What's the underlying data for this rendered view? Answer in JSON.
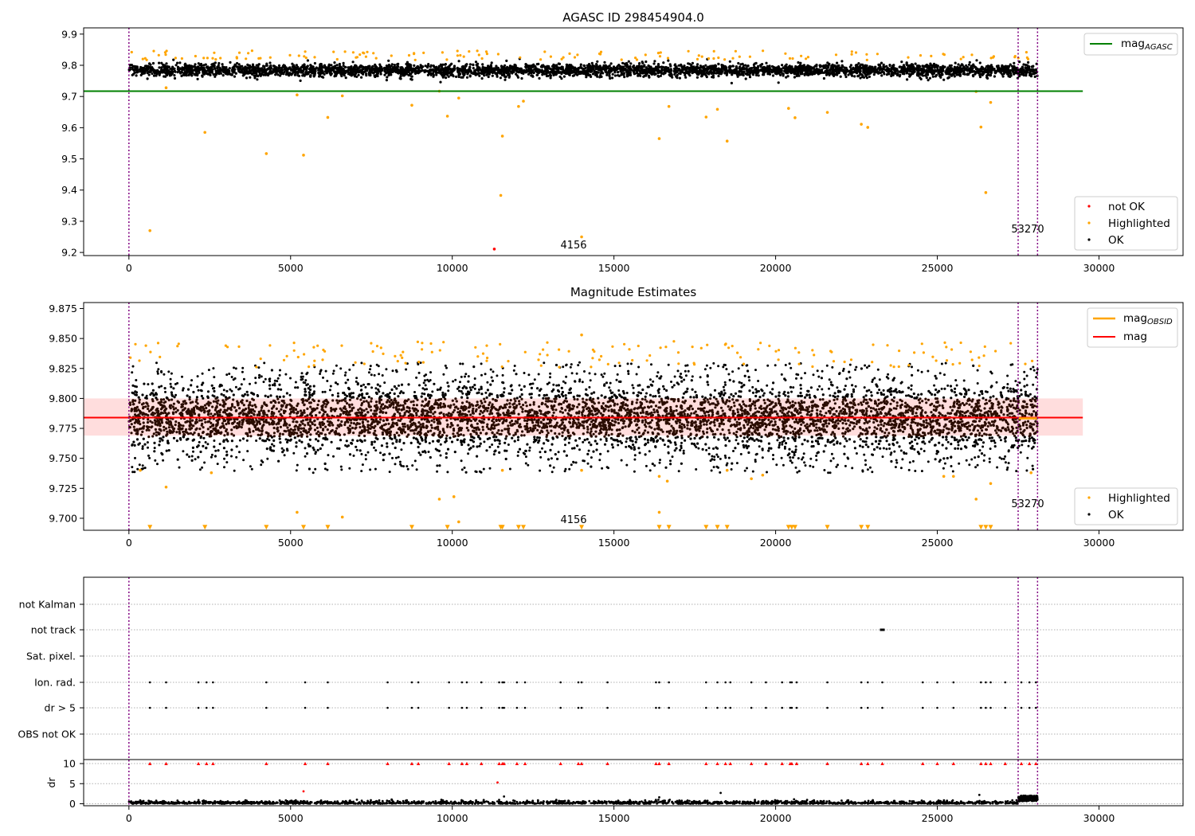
{
  "chart_data": [
    {
      "type": "scatter",
      "title": "AGASC ID 298454904.0",
      "xlim": [
        -1400,
        32600
      ],
      "ylim": [
        9.19,
        9.92
      ],
      "xticks": [
        "0",
        "5000",
        "10000",
        "15000",
        "20000",
        "25000",
        "30000"
      ],
      "yticks": [
        "9.2",
        "9.3",
        "9.4",
        "9.5",
        "9.6",
        "9.7",
        "9.8",
        "9.9"
      ],
      "hline": {
        "name": "mag_AGASC",
        "value": 9.717,
        "color": "#008000",
        "x_range": [
          -1400,
          29500
        ]
      },
      "vlines": [
        0,
        27500,
        28100
      ],
      "band": {
        "center": 9.784,
        "spread": 0.014,
        "x_range": [
          0,
          28100
        ]
      },
      "series": [
        {
          "name": "not OK",
          "color": "#ff0000",
          "points": [
            [
              11300,
              9.211
            ]
          ]
        },
        {
          "name": "Highlighted",
          "color": "#ffa500",
          "points": [
            [
              650,
              9.27
            ],
            [
              2350,
              9.585
            ],
            [
              4250,
              9.517
            ],
            [
              5400,
              9.512
            ],
            [
              6150,
              9.633
            ],
            [
              8750,
              9.672
            ],
            [
              9850,
              9.637
            ],
            [
              11550,
              9.573
            ],
            [
              11500,
              9.383
            ],
            [
              12050,
              9.668
            ],
            [
              12200,
              9.685
            ],
            [
              14000,
              9.25
            ],
            [
              16400,
              9.565
            ],
            [
              16700,
              9.668
            ],
            [
              17850,
              9.634
            ],
            [
              18200,
              9.659
            ],
            [
              18500,
              9.557
            ],
            [
              20400,
              9.662
            ],
            [
              20600,
              9.632
            ],
            [
              21600,
              9.649
            ],
            [
              22650,
              9.611
            ],
            [
              22850,
              9.601
            ],
            [
              26350,
              9.602
            ],
            [
              26500,
              9.392
            ],
            [
              26650,
              9.681
            ],
            [
              5200,
              9.705
            ],
            [
              6600,
              9.702
            ],
            [
              10200,
              9.695
            ],
            [
              9600,
              9.717
            ],
            [
              1150,
              9.728
            ],
            [
              26200,
              9.716
            ]
          ]
        }
      ],
      "annotations": [
        {
          "text": "4156",
          "x": 13900,
          "y": 9.215
        },
        {
          "text": "53270",
          "x": 27800,
          "y": 9.265
        }
      ],
      "legends": [
        [
          "mag_AGASC"
        ],
        [
          "not OK",
          "Highlighted",
          "OK"
        ]
      ]
    },
    {
      "type": "scatter",
      "title": "Magnitude Estimates",
      "xlim": [
        -1400,
        32600
      ],
      "ylim": [
        9.69,
        9.88
      ],
      "xticks": [
        "0",
        "5000",
        "10000",
        "15000",
        "20000",
        "25000",
        "30000"
      ],
      "yticks": [
        "9.700",
        "9.725",
        "9.750",
        "9.775",
        "9.800",
        "9.825",
        "9.850",
        "9.875"
      ],
      "hlines": [
        {
          "name": "mag_OBSID",
          "value": 9.784,
          "color": "#ffa500",
          "x_range": [
            27500,
            28100
          ]
        },
        {
          "name": "mag",
          "value": 9.784,
          "color": "#ff0000",
          "x_range": [
            -1400,
            29500
          ]
        }
      ],
      "error_band": {
        "low": 9.769,
        "high": 9.8,
        "color": "#ffdddd",
        "x_range": [
          -1400,
          29500
        ]
      },
      "vlines": [
        0,
        27500,
        28100
      ],
      "clipped_x": [
        650,
        2350,
        4250,
        5400,
        6150,
        8750,
        9850,
        11500,
        11550,
        12050,
        12200,
        14000,
        16400,
        16700,
        17850,
        18200,
        18500,
        20400,
        20500,
        20600,
        21600,
        22650,
        22850,
        26350,
        26500,
        26650
      ],
      "series": [
        {
          "name": "Highlighted",
          "color": "#ffa500",
          "points": [
            [
              350,
              9.74
            ],
            [
              1150,
              9.726
            ],
            [
              2550,
              9.738
            ],
            [
              5200,
              9.705
            ],
            [
              6600,
              9.701
            ],
            [
              9600,
              9.716
            ],
            [
              10050,
              9.718
            ],
            [
              10200,
              9.697
            ],
            [
              11550,
              9.74
            ],
            [
              14000,
              9.853
            ],
            [
              14000,
              9.74
            ],
            [
              16400,
              9.705
            ],
            [
              16400,
              9.735
            ],
            [
              16650,
              9.731
            ],
            [
              18500,
              9.74
            ],
            [
              19250,
              9.733
            ],
            [
              19600,
              9.736
            ],
            [
              25200,
              9.735
            ],
            [
              25500,
              9.735
            ],
            [
              26200,
              9.716
            ],
            [
              26650,
              9.729
            ],
            [
              27900,
              9.738
            ]
          ]
        }
      ],
      "annotations": [
        {
          "text": "4156",
          "x": 13900,
          "y": 9.697
        },
        {
          "text": "53270",
          "x": 27800,
          "y": 9.71
        }
      ],
      "legends": [
        [
          "mag_OBSID",
          "mag"
        ],
        [
          "Highlighted",
          "OK"
        ]
      ]
    },
    {
      "type": "scatter",
      "title": "",
      "xlim": [
        -1400,
        32600
      ],
      "categories": [
        "not Kalman",
        "not track",
        "Sat. pixel.",
        "Ion. rad.",
        "dr > 5",
        "OBS not OK"
      ],
      "flag_x": [
        650,
        1150,
        2150,
        2400,
        2600,
        4250,
        5450,
        6150,
        8000,
        8750,
        8950,
        9900,
        10300,
        10450,
        10900,
        11450,
        11550,
        11600,
        12000,
        12250,
        13350,
        13900,
        14000,
        14800,
        16300,
        16400,
        16700,
        17850,
        18200,
        18450,
        18600,
        19250,
        19700,
        20200,
        20450,
        20500,
        20650,
        21600,
        22650,
        22850,
        23300,
        24550,
        25000,
        25500,
        26350,
        26500,
        26650,
        27100,
        27600,
        27850,
        28050
      ],
      "not_track_x": 23300,
      "dr": {
        "ylabel": "dr",
        "yticks": [
          "0",
          "5",
          "10"
        ],
        "ylim": [
          -0.5,
          11
        ],
        "clipped_value": 10,
        "outliers": [
          [
            5400,
            3.1
          ],
          [
            11400,
            5.3
          ],
          [
            11600,
            1.8
          ],
          [
            16400,
            1.6
          ],
          [
            18300,
            2.7
          ],
          [
            26300,
            2.2
          ]
        ]
      },
      "vlines": [
        0,
        27500,
        28100
      ],
      "xticks": [
        "0",
        "5000",
        "10000",
        "15000",
        "20000",
        "25000",
        "30000"
      ]
    }
  ]
}
